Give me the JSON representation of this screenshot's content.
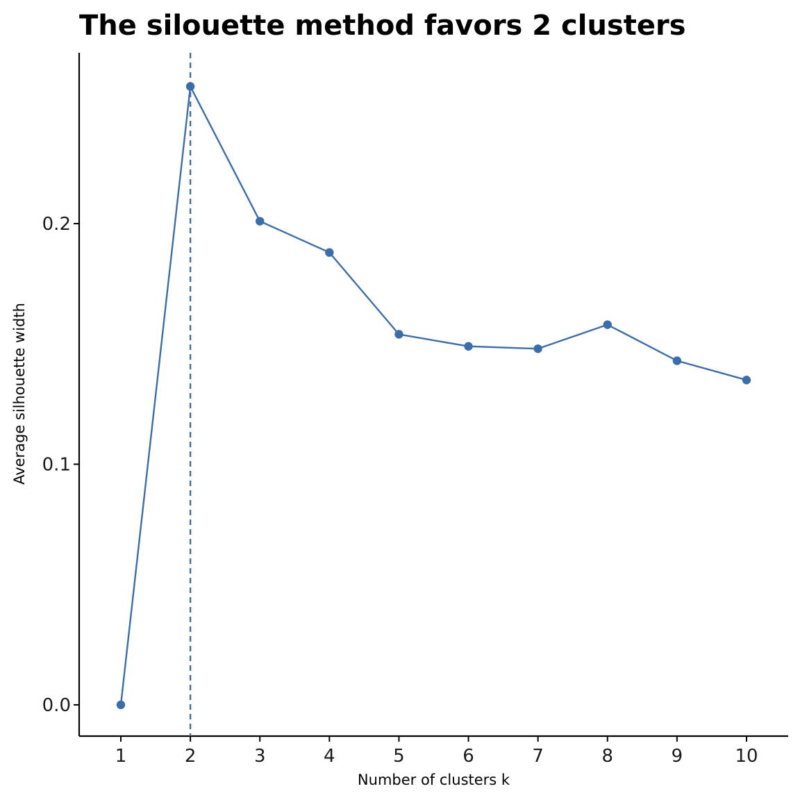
{
  "chart_data": {
    "type": "line",
    "title": "The silouette method favors 2 clusters",
    "xlabel": "Number of clusters k",
    "ylabel": "Average silhouette width",
    "x": [
      "1",
      "2",
      "3",
      "4",
      "5",
      "6",
      "7",
      "8",
      "9",
      "10"
    ],
    "series": [
      {
        "values": [
          0.0,
          0.257,
          0.201,
          0.188,
          0.154,
          0.149,
          0.148,
          0.158,
          0.143,
          0.135
        ]
      }
    ],
    "yticks": [
      0.0,
      0.1,
      0.2
    ],
    "ytick_labels": [
      "0.0",
      "0.1",
      "0.2"
    ],
    "ylim": [
      -0.013,
      0.271
    ],
    "reference_line": {
      "orientation": "vertical",
      "x": "2",
      "style": "dashed"
    },
    "grid": false,
    "legend": "none",
    "colors": {
      "series": "#3b6ea8",
      "reference_line": "#3b6ea8",
      "axis": "#000000"
    }
  }
}
